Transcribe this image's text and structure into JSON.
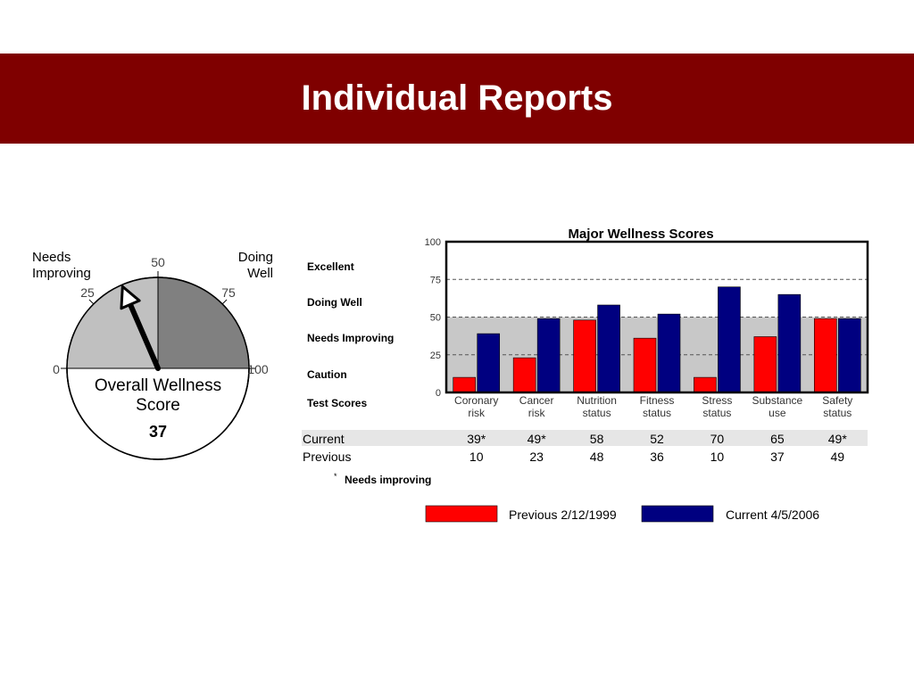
{
  "slide": {
    "title": "Individual Reports",
    "colors": {
      "title_bar": "#7f0000",
      "title_text": "#ffffff"
    }
  },
  "gauge": {
    "label_left": [
      "Needs",
      "Improving"
    ],
    "label_right": [
      "Doing",
      "Well"
    ],
    "ticks": [
      "0",
      "25",
      "50",
      "75",
      "100"
    ],
    "caption": [
      "Overall Wellness",
      "Score"
    ],
    "score": 37,
    "score_label": "37",
    "colors": {
      "needs_improving": "#c0c0c0",
      "doing_well": "#808080",
      "needle": "#000000"
    }
  },
  "chart_data": {
    "type": "bar",
    "title": "Major Wellness Scores",
    "categories": [
      [
        "Coronary",
        "risk"
      ],
      [
        "Cancer",
        "risk"
      ],
      [
        "Nutrition",
        "status"
      ],
      [
        "Fitness",
        "status"
      ],
      [
        "Stress",
        "status"
      ],
      [
        "Substance",
        "use"
      ],
      [
        "Safety",
        "status"
      ]
    ],
    "series": [
      {
        "name": "Previous 2/12/1999",
        "color": "#ff0000",
        "values": [
          10,
          23,
          48,
          36,
          10,
          37,
          49
        ]
      },
      {
        "name": "Current 4/5/2006",
        "color": "#000080",
        "values": [
          39,
          49,
          58,
          52,
          70,
          65,
          49
        ]
      }
    ],
    "ylim": [
      0,
      100
    ],
    "yticks": [
      "0",
      "25",
      "50",
      "75",
      "100"
    ],
    "gridlines": "dashed",
    "shaded_band": [
      0,
      50
    ],
    "band_labels": [
      "Excellent",
      "Doing Well",
      "Needs Improving",
      "Caution",
      "Test Scores"
    ],
    "table": {
      "rows": [
        {
          "label": "Current",
          "values": [
            "39*",
            "49*",
            "58",
            "52",
            "70",
            "65",
            "49*"
          ]
        },
        {
          "label": "Previous",
          "values": [
            "10",
            "23",
            "48",
            "36",
            "10",
            "37",
            "49"
          ]
        }
      ]
    },
    "footnote": {
      "mark": "*",
      "text": "Needs improving"
    },
    "legend": [
      "Previous 2/12/1999",
      "Current 4/5/2006"
    ],
    "legend_position": "bottom"
  }
}
